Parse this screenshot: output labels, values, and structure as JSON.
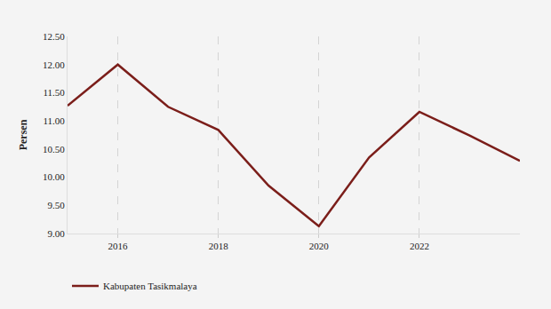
{
  "chart_data": {
    "type": "line",
    "y_label": "Persen",
    "x": [
      2015,
      2016,
      2017,
      2018,
      2019,
      2020,
      2021,
      2022,
      2023,
      2024
    ],
    "series": [
      {
        "name": "Kabupaten Tasikmalaya",
        "color": "#7b1e1a",
        "values": [
          11.27,
          12.0,
          11.25,
          10.84,
          9.85,
          9.13,
          10.35,
          11.16,
          10.74,
          10.29
        ]
      }
    ],
    "xlim": [
      2015,
      2024
    ],
    "xticks": [
      2016,
      2018,
      2020,
      2022
    ],
    "ylim": [
      9,
      12.5
    ],
    "yticks": [
      {
        "value": 9,
        "label": "9.00"
      },
      {
        "value": 9.5,
        "label": "9.50"
      },
      {
        "value": 10,
        "label": "10.00"
      },
      {
        "value": 10.5,
        "label": "10.50"
      },
      {
        "value": 11,
        "label": "11.00"
      },
      {
        "value": 11.5,
        "label": "11.50"
      },
      {
        "value": 12,
        "label": "12.00"
      },
      {
        "value": 12.5,
        "label": "12.50"
      }
    ],
    "grid": true,
    "legend": "bottom-left"
  }
}
